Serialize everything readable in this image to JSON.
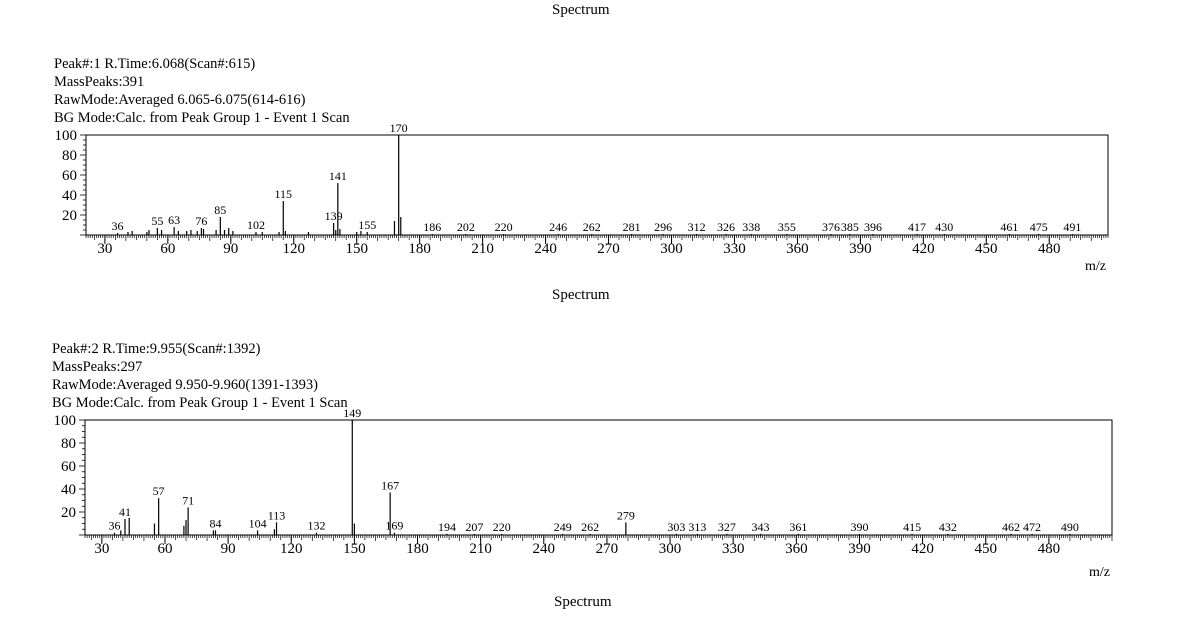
{
  "titles": [
    "Spectrum",
    "Spectrum",
    "Spectrum"
  ],
  "chart_data": [
    {
      "type": "bar",
      "meta": [
        "Peak#:1   R.Time:6.068(Scan#:615)",
        "MassPeaks:391",
        "RawMode:Averaged 6.065-6.075(614-616)",
        "BG Mode:Calc. from Peak  Group 1 - Event 1 Scan"
      ],
      "xlabel": "m/z",
      "xlim": [
        21,
        508
      ],
      "ylim": [
        0,
        100
      ],
      "xticks": [
        30,
        60,
        90,
        120,
        150,
        180,
        210,
        240,
        270,
        300,
        330,
        360,
        390,
        420,
        450,
        480
      ],
      "yticks": [
        20,
        40,
        60,
        80,
        100
      ],
      "peaks": [
        {
          "mz": 36,
          "i": 2,
          "label": "36"
        },
        {
          "mz": 41,
          "i": 3
        },
        {
          "mz": 43,
          "i": 4
        },
        {
          "mz": 50,
          "i": 3
        },
        {
          "mz": 51,
          "i": 5
        },
        {
          "mz": 55,
          "i": 7,
          "label": "55"
        },
        {
          "mz": 57,
          "i": 5
        },
        {
          "mz": 63,
          "i": 8,
          "label": "63"
        },
        {
          "mz": 65,
          "i": 4
        },
        {
          "mz": 69,
          "i": 4
        },
        {
          "mz": 71,
          "i": 5
        },
        {
          "mz": 74,
          "i": 4
        },
        {
          "mz": 76,
          "i": 7,
          "label": "76"
        },
        {
          "mz": 77,
          "i": 6
        },
        {
          "mz": 83,
          "i": 5
        },
        {
          "mz": 85,
          "i": 18,
          "label": "85"
        },
        {
          "mz": 87,
          "i": 5
        },
        {
          "mz": 89,
          "i": 7
        },
        {
          "mz": 91,
          "i": 4
        },
        {
          "mz": 102,
          "i": 3,
          "label": "102"
        },
        {
          "mz": 105,
          "i": 3
        },
        {
          "mz": 113,
          "i": 3
        },
        {
          "mz": 115,
          "i": 34,
          "label": "115"
        },
        {
          "mz": 116,
          "i": 4
        },
        {
          "mz": 127,
          "i": 3
        },
        {
          "mz": 139,
          "i": 12,
          "label": "139"
        },
        {
          "mz": 140,
          "i": 5
        },
        {
          "mz": 141,
          "i": 52,
          "label": "141"
        },
        {
          "mz": 142,
          "i": 6
        },
        {
          "mz": 150,
          "i": 3
        },
        {
          "mz": 152,
          "i": 4
        },
        {
          "mz": 155,
          "i": 3,
          "label": "155"
        },
        {
          "mz": 168,
          "i": 14
        },
        {
          "mz": 170,
          "i": 100,
          "label": "170"
        },
        {
          "mz": 171,
          "i": 18
        },
        {
          "mz": 186,
          "i": 1,
          "label": "186"
        },
        {
          "mz": 202,
          "i": 1,
          "label": "202"
        },
        {
          "mz": 220,
          "i": 1,
          "label": "220"
        },
        {
          "mz": 246,
          "i": 1,
          "label": "246"
        },
        {
          "mz": 262,
          "i": 1,
          "label": "262"
        },
        {
          "mz": 281,
          "i": 1,
          "label": "281"
        },
        {
          "mz": 296,
          "i": 1,
          "label": "296"
        },
        {
          "mz": 312,
          "i": 1,
          "label": "312"
        },
        {
          "mz": 326,
          "i": 1,
          "label": "326"
        },
        {
          "mz": 338,
          "i": 1,
          "label": "338"
        },
        {
          "mz": 355,
          "i": 1,
          "label": "355"
        },
        {
          "mz": 376,
          "i": 1,
          "label": "376"
        },
        {
          "mz": 385,
          "i": 1,
          "label": "385"
        },
        {
          "mz": 396,
          "i": 1,
          "label": "396"
        },
        {
          "mz": 417,
          "i": 1,
          "label": "417"
        },
        {
          "mz": 430,
          "i": 1,
          "label": "430"
        },
        {
          "mz": 461,
          "i": 1,
          "label": "461"
        },
        {
          "mz": 475,
          "i": 1,
          "label": "475"
        },
        {
          "mz": 491,
          "i": 1,
          "label": "491"
        }
      ]
    },
    {
      "type": "bar",
      "meta": [
        "Peak#:2   R.Time:9.955(Scan#:1392)",
        "MassPeaks:297",
        "RawMode:Averaged 9.950-9.960(1391-1393)",
        "BG Mode:Calc. from Peak  Group 1 - Event 1 Scan"
      ],
      "xlabel": "m/z",
      "xlim": [
        22,
        510
      ],
      "ylim": [
        0,
        100
      ],
      "xticks": [
        30,
        60,
        90,
        120,
        150,
        180,
        210,
        240,
        270,
        300,
        330,
        360,
        390,
        420,
        450,
        480
      ],
      "yticks": [
        20,
        40,
        60,
        80,
        100
      ],
      "peaks": [
        {
          "mz": 36,
          "i": 2,
          "label": "36"
        },
        {
          "mz": 39,
          "i": 4
        },
        {
          "mz": 41,
          "i": 14,
          "label": "41"
        },
        {
          "mz": 43,
          "i": 15
        },
        {
          "mz": 55,
          "i": 10
        },
        {
          "mz": 57,
          "i": 32,
          "label": "57"
        },
        {
          "mz": 69,
          "i": 8
        },
        {
          "mz": 70,
          "i": 13
        },
        {
          "mz": 71,
          "i": 24,
          "label": "71"
        },
        {
          "mz": 83,
          "i": 4
        },
        {
          "mz": 84,
          "i": 4,
          "label": "84"
        },
        {
          "mz": 104,
          "i": 4,
          "label": "104"
        },
        {
          "mz": 112,
          "i": 5
        },
        {
          "mz": 113,
          "i": 11,
          "label": "113"
        },
        {
          "mz": 132,
          "i": 2,
          "label": "132"
        },
        {
          "mz": 149,
          "i": 100,
          "label": "149"
        },
        {
          "mz": 150,
          "i": 10
        },
        {
          "mz": 167,
          "i": 37,
          "label": "167"
        },
        {
          "mz": 169,
          "i": 2,
          "label": "169"
        },
        {
          "mz": 194,
          "i": 1,
          "label": "194"
        },
        {
          "mz": 207,
          "i": 1,
          "label": "207"
        },
        {
          "mz": 220,
          "i": 1,
          "label": "220"
        },
        {
          "mz": 249,
          "i": 1,
          "label": "249"
        },
        {
          "mz": 262,
          "i": 1,
          "label": "262"
        },
        {
          "mz": 279,
          "i": 11,
          "label": "279"
        },
        {
          "mz": 303,
          "i": 1,
          "label": "303"
        },
        {
          "mz": 313,
          "i": 1,
          "label": "313"
        },
        {
          "mz": 327,
          "i": 1,
          "label": "327"
        },
        {
          "mz": 343,
          "i": 1,
          "label": "343"
        },
        {
          "mz": 361,
          "i": 1,
          "label": "361"
        },
        {
          "mz": 390,
          "i": 1,
          "label": "390"
        },
        {
          "mz": 415,
          "i": 1,
          "label": "415"
        },
        {
          "mz": 432,
          "i": 1,
          "label": "432"
        },
        {
          "mz": 462,
          "i": 1,
          "label": "462"
        },
        {
          "mz": 472,
          "i": 1,
          "label": "472"
        },
        {
          "mz": 490,
          "i": 1,
          "label": "490"
        }
      ]
    }
  ]
}
